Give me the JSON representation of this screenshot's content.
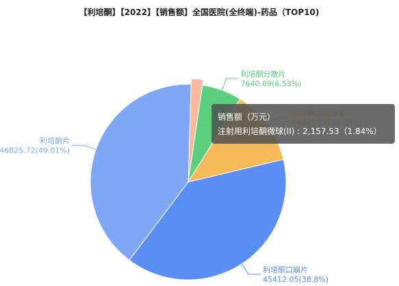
{
  "chart_data": {
    "type": "pie",
    "title": "【利培酮】【2022】【销售额】全国医院(全终端)-药品（TOP10)",
    "categories": [
      "注射用利培酮微球(II)",
      "利培酮分散片",
      "利培酮口服溶液",
      "利培酮口崩片",
      "利培酮片"
    ],
    "values": [
      2157.53,
      7640.09,
      14459.77,
      45412.05,
      46825.72
    ],
    "value_labels": [
      null,
      "7640.09(6.53%)",
      "14459.77(12.35%)",
      "45412.05(38.8%)",
      "46825.72(40.01%)"
    ],
    "colors": [
      "#f8b99c",
      "#5ccf7e",
      "#f6b957",
      "#5b8ef5",
      "#7fa7f6"
    ],
    "highlight": 0,
    "tooltip": {
      "title": "销售额（万元）",
      "text": "注射用利培酮微球(II) : 2,157.53（1.84%）"
    }
  }
}
